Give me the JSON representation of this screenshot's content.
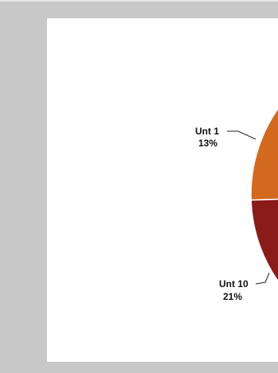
{
  "chart_data": {
    "type": "pie",
    "slices": [
      {
        "label": "Unt 1",
        "value": 13,
        "percent_label": "13%",
        "color": "#d2691e"
      },
      {
        "label": "Unt 10",
        "value": 21,
        "percent_label": "21%",
        "color": "#8b1a1a"
      }
    ],
    "title": "",
    "legend": "none"
  },
  "colors": {
    "frame": "#c8c8c8",
    "panel": "#ffffff",
    "leader_line": "#222222"
  }
}
